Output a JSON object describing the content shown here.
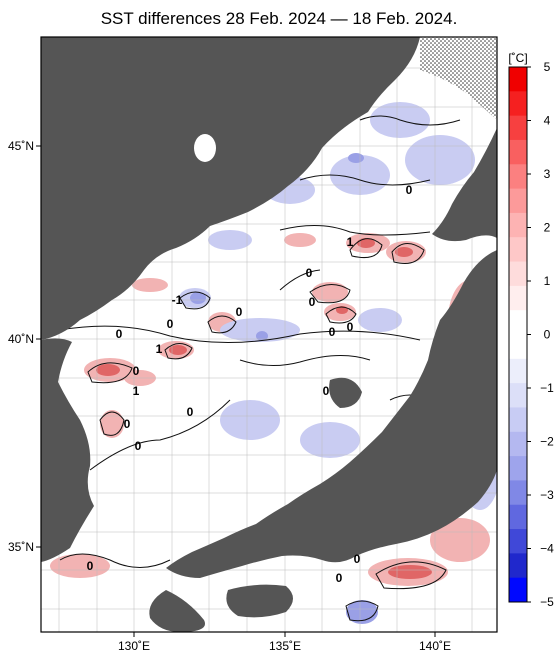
{
  "title": "SST differences 28 Feb. 2024 — 18 Feb. 2024.",
  "colors": {
    "land": "#555555",
    "ocean": "#ffffff",
    "grid": "#bbbbbb",
    "contour": "#111111",
    "no_data": "#ffffff",
    "warm": "#f2b3b3",
    "warm_strong": "#e06666",
    "cool": "#c9ccf2",
    "cool_strong": "#9aa0e6"
  },
  "map": {
    "lat_labels": [
      "45˚N",
      "40˚N",
      "35˚N"
    ],
    "lon_labels": [
      "130˚E",
      "135˚E",
      "140˚E"
    ],
    "contour_labels": [
      "0",
      "1",
      "0",
      "0",
      "-1",
      "0",
      "0",
      "0",
      "1",
      "0",
      "0",
      "0",
      "1",
      "0",
      "0",
      "0",
      "0",
      "0",
      "0",
      "0"
    ]
  },
  "colorbar": {
    "unit": "[˚C]",
    "tick_labels": [
      "5",
      "4",
      "3",
      "2",
      "1",
      "0",
      "−1",
      "−2",
      "−3",
      "−4",
      "−5"
    ],
    "colors": [
      "#f00000",
      "#f52020",
      "#f74040",
      "#f96060",
      "#fb8080",
      "#fc9a9a",
      "#fdb3b3",
      "#fec8c8",
      "#fedcdc",
      "#ffeeee",
      "#ffffff",
      "#ffffff",
      "#eceefb",
      "#dcdff8",
      "#c8ccf4",
      "#b4b8f0",
      "#9ea4ec",
      "#8088e6",
      "#6068e0",
      "#4048d8",
      "#2028cc",
      "#0008ff"
    ]
  }
}
